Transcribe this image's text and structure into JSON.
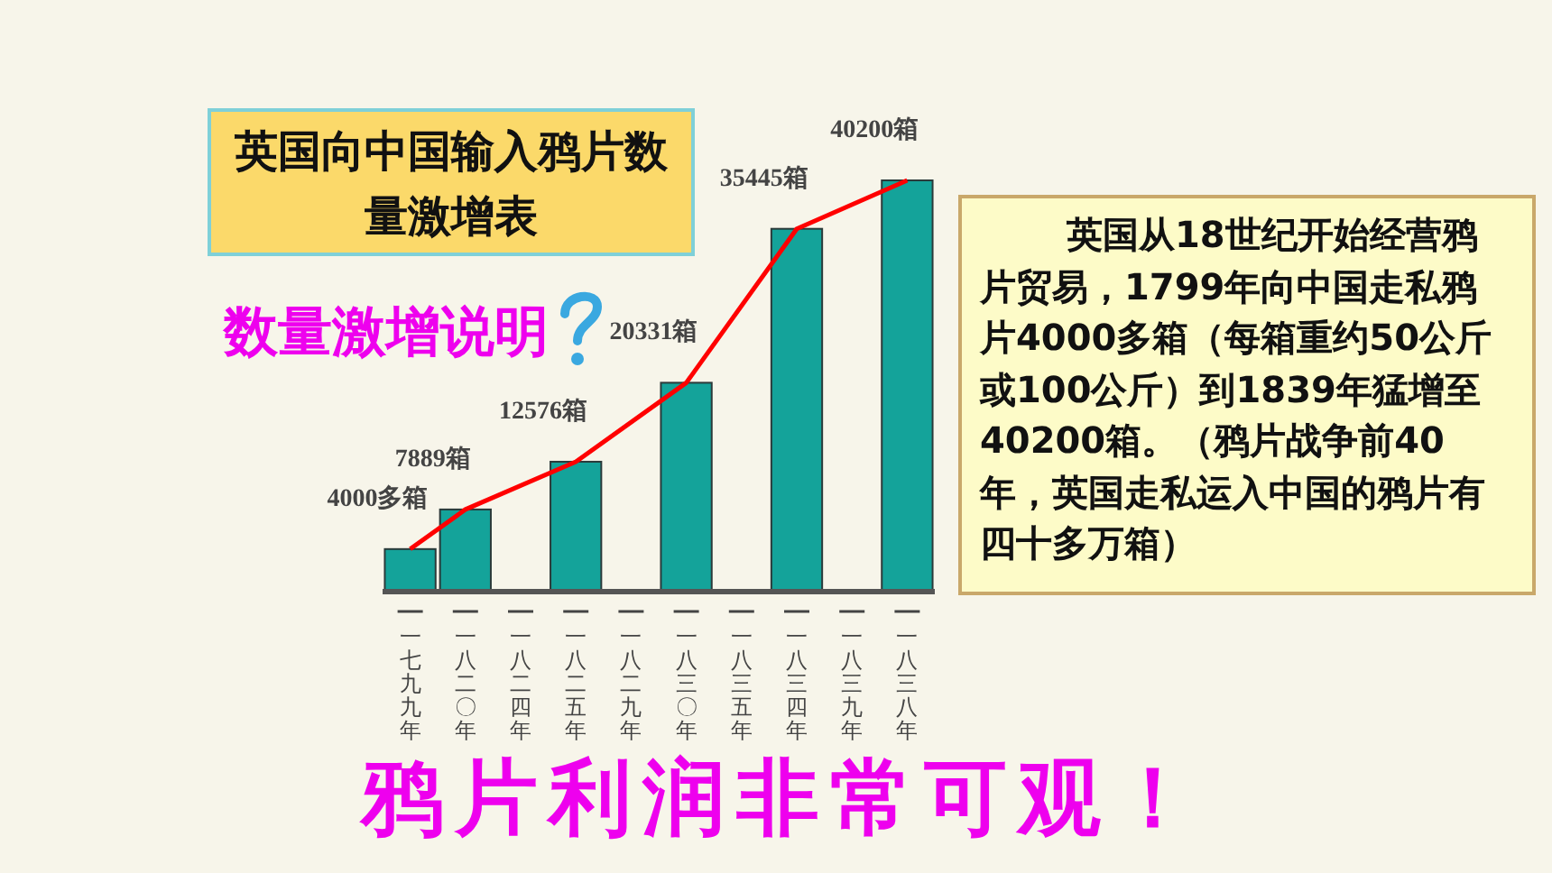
{
  "chart_data": {
    "type": "bar",
    "title": "英国向中国输入鸦片数量激增表",
    "subtitle": "数量激增说明",
    "categories": [
      "一七九九年",
      "一八二〇年",
      "一八二四年",
      "一八二五年",
      "一八二九年",
      "一八三〇年",
      "一八三五年",
      "一八三四年",
      "一八三九年",
      "一八三八年"
    ],
    "series": [
      {
        "color": "#14a39a",
        "values": [
          4000,
          7889,
          null,
          12576,
          null,
          20331,
          null,
          35445,
          null,
          40200
        ],
        "value_labels": [
          "4000多箱",
          "7889箱",
          null,
          "12576箱",
          null,
          "20331箱",
          null,
          "35445箱",
          null,
          "40200箱"
        ]
      },
      {
        "type": "line",
        "color": "#ff0000",
        "values": [
          4000,
          7889,
          null,
          12576,
          null,
          20331,
          null,
          35445,
          null,
          40200
        ]
      }
    ],
    "annotations": [
      "英国从18世纪开始经营鸦片贸易，1799年向中国走私鸦片4000多箱（每箱重约50公斤或100公斤）到1839年猛增至40200箱。（鸦片战争前40年，英国走私运入中国的鸦片有四十多万箱）",
      "鸦片利润非常可观！"
    ]
  }
}
